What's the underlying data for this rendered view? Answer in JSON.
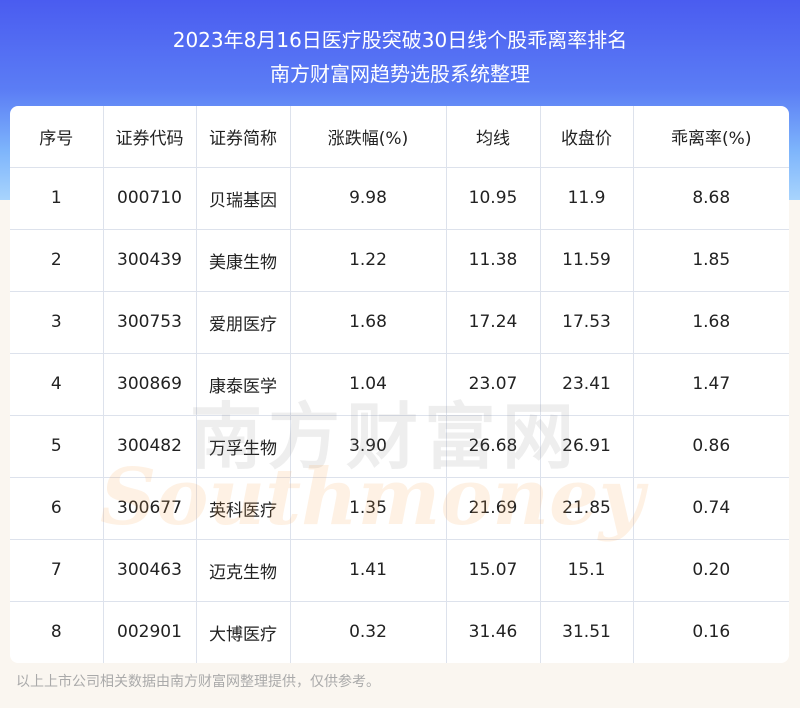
{
  "header": {
    "title": "2023年8月16日医疗股突破30日线个股乖离率排名",
    "subtitle": "南方财富网趋势选股系统整理"
  },
  "table": {
    "columns": [
      "序号",
      "证券代码",
      "证券简称",
      "涨跌幅(%)",
      "均线",
      "收盘价",
      "乖离率(%)"
    ],
    "rows": [
      [
        "1",
        "000710",
        "贝瑞基因",
        "9.98",
        "10.95",
        "11.9",
        "8.68"
      ],
      [
        "2",
        "300439",
        "美康生物",
        "1.22",
        "11.38",
        "11.59",
        "1.85"
      ],
      [
        "3",
        "300753",
        "爱朋医疗",
        "1.68",
        "17.24",
        "17.53",
        "1.68"
      ],
      [
        "4",
        "300869",
        "康泰医学",
        "1.04",
        "23.07",
        "23.41",
        "1.47"
      ],
      [
        "5",
        "300482",
        "万孚生物",
        "3.90",
        "26.68",
        "26.91",
        "0.86"
      ],
      [
        "6",
        "300677",
        "英科医疗",
        "1.35",
        "21.69",
        "21.85",
        "0.74"
      ],
      [
        "7",
        "300463",
        "迈克生物",
        "1.41",
        "15.07",
        "15.1",
        "0.20"
      ],
      [
        "8",
        "002901",
        "大博医疗",
        "0.32",
        "31.46",
        "31.51",
        "0.16"
      ]
    ]
  },
  "watermark": {
    "cn": "南方财富网",
    "en": "Southmoney"
  },
  "footer": "以上上市公司相关数据由南方财富网整理提供，仅供参考。",
  "colors": {
    "banner": "#4a5cf0",
    "background": "#faf6f0"
  }
}
